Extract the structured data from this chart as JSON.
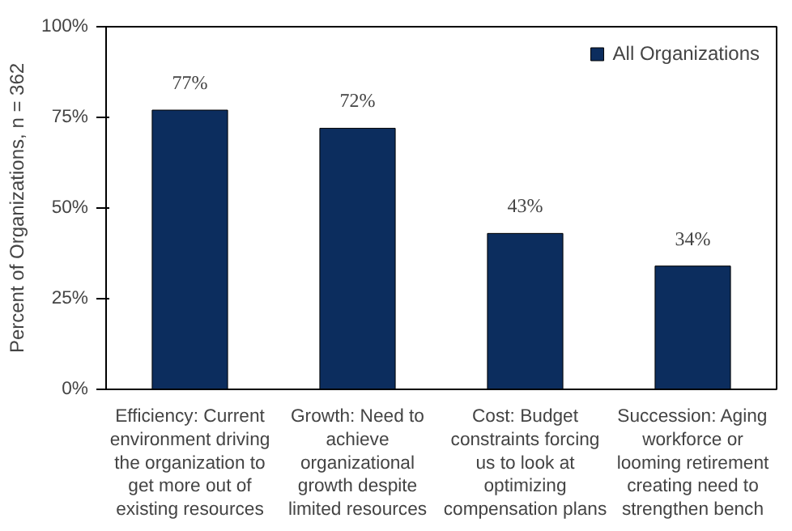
{
  "chart_data": {
    "type": "bar",
    "ylabel": "Percent of Organizations, n = 362",
    "categories": [
      "Efficiency: Current environment driving the organization to get more out of existing resources",
      "Growth: Need to achieve organizational growth despite limited resources",
      "Cost: Budget constraints forcing us to look at optimizing compensation plans",
      "Succession: Aging workforce or looming retirement creating need to strengthen bench"
    ],
    "series": [
      {
        "name": "All Organizations",
        "color": "#0c2d5e",
        "values": [
          77,
          72,
          43,
          34
        ]
      }
    ],
    "value_labels": [
      "77%",
      "72%",
      "43%",
      "34%"
    ],
    "ylim": [
      0,
      100
    ],
    "yticks": [
      {
        "value": 0,
        "label": "0%"
      },
      {
        "value": 25,
        "label": "25%"
      },
      {
        "value": 50,
        "label": "50%"
      },
      {
        "value": 75,
        "label": "75%"
      },
      {
        "value": 100,
        "label": "100%"
      }
    ],
    "grid": false,
    "legend": "top right"
  }
}
